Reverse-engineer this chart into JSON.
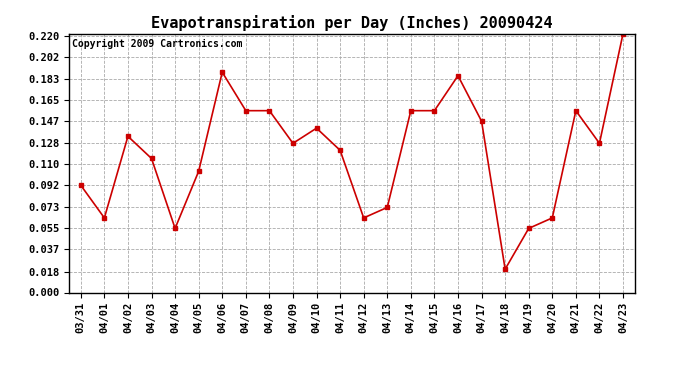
{
  "title": "Evapotranspiration per Day (Inches) 20090424",
  "copyright": "Copyright 2009 Cartronics.com",
  "x_labels": [
    "03/31",
    "04/01",
    "04/02",
    "04/03",
    "04/04",
    "04/05",
    "04/06",
    "04/07",
    "04/08",
    "04/09",
    "04/10",
    "04/11",
    "04/12",
    "04/13",
    "04/14",
    "04/15",
    "04/16",
    "04/17",
    "04/18",
    "04/19",
    "04/20",
    "04/21",
    "04/22",
    "04/23"
  ],
  "y_values": [
    0.092,
    0.064,
    0.134,
    0.115,
    0.055,
    0.104,
    0.189,
    0.156,
    0.156,
    0.128,
    0.141,
    0.122,
    0.064,
    0.073,
    0.156,
    0.156,
    0.186,
    0.147,
    0.02,
    0.055,
    0.064,
    0.156,
    0.128,
    0.222
  ],
  "y_ticks": [
    0.0,
    0.018,
    0.037,
    0.055,
    0.073,
    0.092,
    0.11,
    0.128,
    0.147,
    0.165,
    0.183,
    0.202,
    0.22
  ],
  "ylim": [
    0.0,
    0.22
  ],
  "line_color": "#cc0000",
  "marker": "s",
  "marker_size": 3,
  "grid_color": "#aaaaaa",
  "background_color": "#ffffff",
  "title_fontsize": 11,
  "copyright_fontsize": 7,
  "tick_fontsize": 7.5,
  "figwidth": 6.9,
  "figheight": 3.75,
  "dpi": 100
}
